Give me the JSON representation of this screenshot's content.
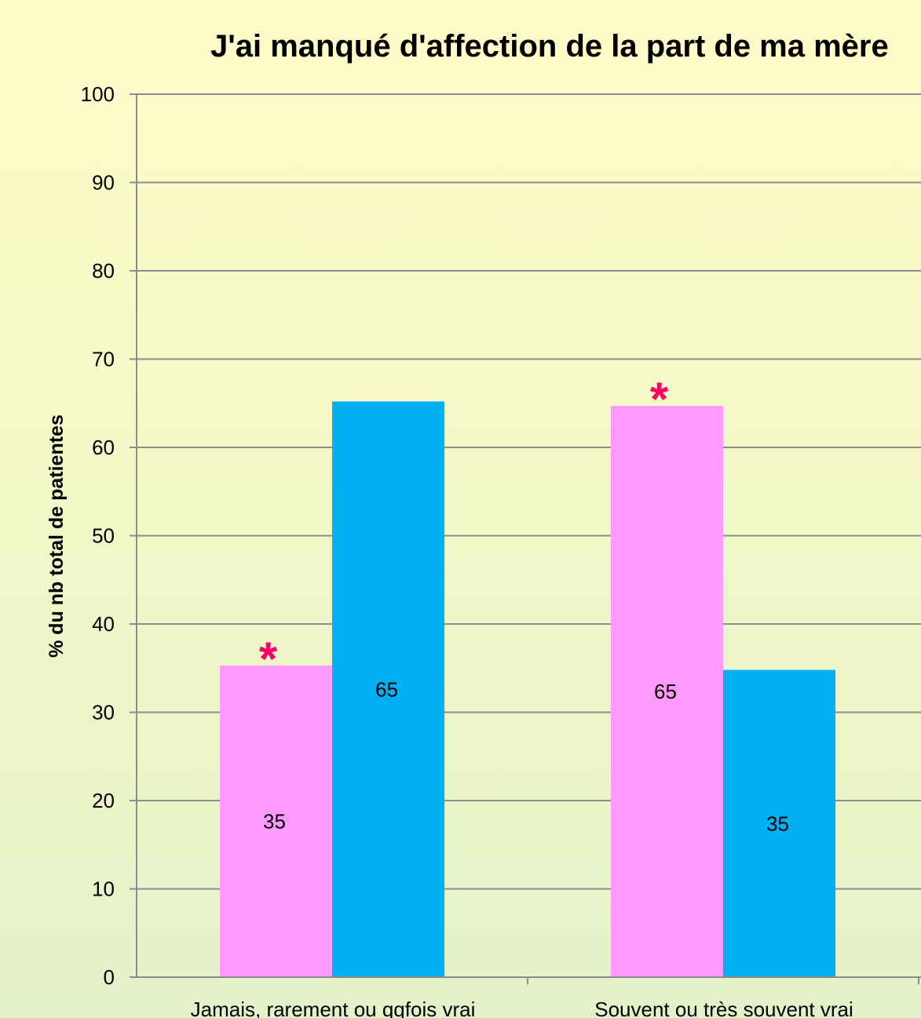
{
  "chart_data": {
    "type": "bar",
    "title": "J'ai manqué d'affection de la part de ma mère",
    "ylabel": "% du nb total de patientes",
    "xlabel": "",
    "ylim": [
      0,
      100
    ],
    "yticks": [
      "0",
      "10",
      "20",
      "30",
      "40",
      "50",
      "60",
      "70",
      "80",
      "90",
      "100"
    ],
    "grid": true,
    "categories": [
      "Jamais, rarement ou qqfois vrai",
      "Souvent ou très souvent vrai"
    ],
    "series": [
      {
        "color": "#ff99ff",
        "values": [
          35.3,
          64.7
        ],
        "labels": [
          "35",
          "65"
        ]
      },
      {
        "color": "#00b0f0",
        "values": [
          65.2,
          34.8
        ],
        "labels": [
          "65",
          "35"
        ]
      }
    ],
    "annotations": [
      {
        "text": "*",
        "category": 0,
        "series": 0,
        "color": "#ff0066"
      },
      {
        "text": "*",
        "category": 1,
        "series": 0,
        "color": "#ff0066"
      }
    ]
  }
}
